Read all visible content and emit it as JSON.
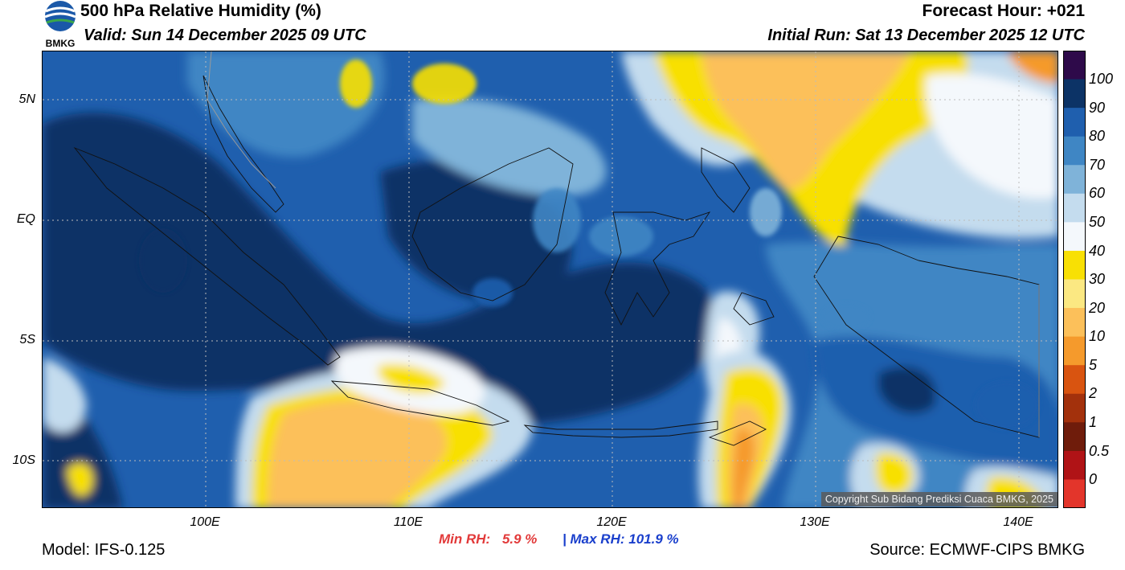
{
  "header": {
    "title": "500 hPa Relative Humidity (%)",
    "valid": "Valid: Sun 14 December 2025 09 UTC",
    "forecast_hour": "Forecast Hour: +021",
    "initial_run": "Initial Run: Sat 13 December 2025 12 UTC",
    "logo_text": "BMKG"
  },
  "map": {
    "lat_labels": [
      "5N",
      "EQ",
      "5S",
      "10S"
    ],
    "lon_labels": [
      "100E",
      "110E",
      "120E",
      "130E",
      "140E"
    ],
    "copyright": "Copyright Sub Bidang Prediksi Cuaca BMKG, 2025"
  },
  "colorbar": {
    "labels": [
      "100",
      "90",
      "80",
      "70",
      "60",
      "50",
      "40",
      "30",
      "20",
      "10",
      "5",
      "2",
      "1",
      "0.5",
      "0"
    ],
    "colors": [
      "#2e0a4a",
      "#0c3366",
      "#1f5fae",
      "#3f86c4",
      "#7fb3d9",
      "#c4dcee",
      "#f4f8fc",
      "#f8e004",
      "#fbe882",
      "#fcc05a",
      "#f59a2c",
      "#d95410",
      "#a3310c",
      "#6f1c0b",
      "#b01316",
      "#e3352b"
    ]
  },
  "stats": {
    "min_label": "Min RH:",
    "min_value": "5.9 %",
    "sep": "|",
    "max_label": "Max RH:",
    "max_value": "101.9 %"
  },
  "footer": {
    "model": "Model: IFS-0.125",
    "source": "Source: ECMWF-CIPS BMKG"
  }
}
